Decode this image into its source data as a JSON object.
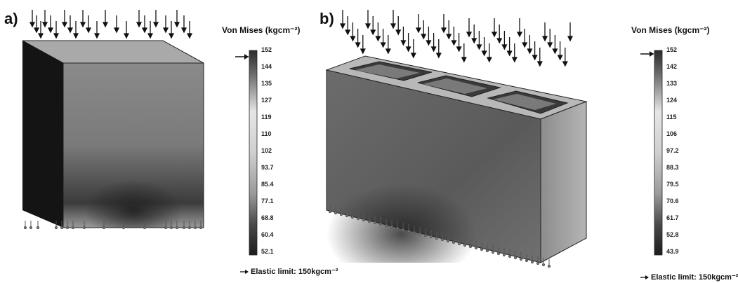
{
  "panel_a": {
    "label": "a)",
    "legend_title": "Von Mises (kgcm⁻²)",
    "ticks": [
      "152",
      "144",
      "135",
      "127",
      "119",
      "110",
      "102",
      "93.7",
      "85.4",
      "77.1",
      "68.8",
      "60.4",
      "52.1"
    ],
    "elastic_label": "Elastic limit: 150kgcm⁻²"
  },
  "panel_b": {
    "label": "b)",
    "legend_title": "Von Mises (kgcm⁻²)",
    "ticks": [
      "152",
      "142",
      "133",
      "124",
      "115",
      "106",
      "97.2",
      "88.3",
      "79.5",
      "70.6",
      "61.7",
      "52.8",
      "43.9"
    ],
    "elastic_label": "Elastic limit: 150kgcm⁻²"
  },
  "colors": {
    "max": "#2a2a2a",
    "mid": "#c8c8c8",
    "min": "#222222"
  }
}
